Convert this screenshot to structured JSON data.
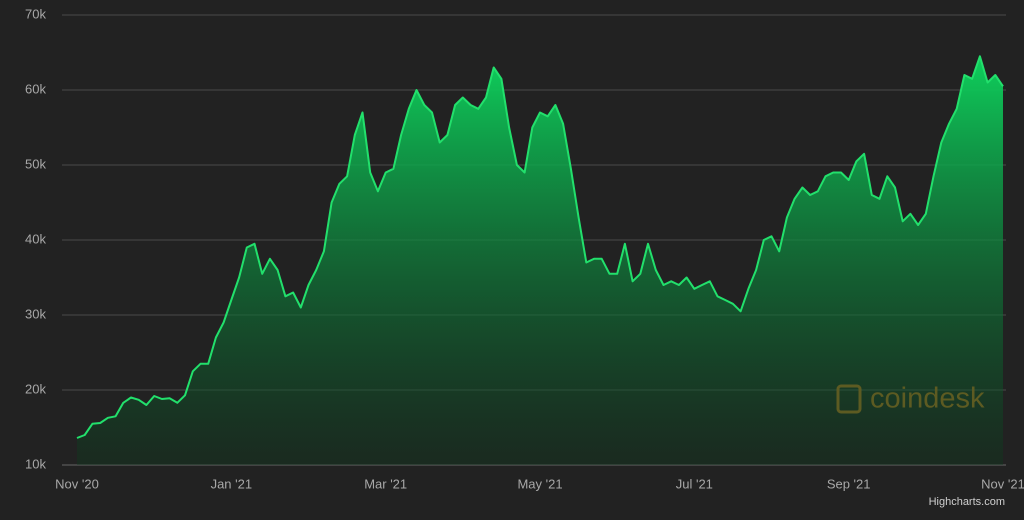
{
  "chart_data": {
    "type": "area",
    "categories": [
      "Nov '20",
      null,
      null,
      null,
      null,
      null,
      null,
      null,
      null,
      null,
      null,
      null,
      null,
      null,
      null,
      null,
      null,
      null,
      null,
      null,
      "Jan '21",
      null,
      null,
      null,
      null,
      null,
      null,
      null,
      null,
      null,
      null,
      null,
      null,
      null,
      null,
      null,
      null,
      null,
      null,
      null,
      "Mar '21",
      null,
      null,
      null,
      null,
      null,
      null,
      null,
      null,
      null,
      null,
      null,
      null,
      null,
      null,
      null,
      null,
      null,
      null,
      null,
      "May '21",
      null,
      null,
      null,
      null,
      null,
      null,
      null,
      null,
      null,
      null,
      null,
      null,
      null,
      null,
      null,
      null,
      null,
      null,
      null,
      "Jul '21",
      null,
      null,
      null,
      null,
      null,
      null,
      null,
      null,
      null,
      null,
      null,
      null,
      null,
      null,
      null,
      null,
      null,
      null,
      null,
      "Sep '21",
      null,
      null,
      null,
      null,
      null,
      null,
      null,
      null,
      null,
      null,
      null,
      null,
      null,
      null,
      null,
      null,
      null,
      null,
      null,
      "Nov '21"
    ],
    "series": [
      {
        "color": "#22e06c",
        "values": [
          13600,
          14000,
          15500,
          15600,
          16300,
          16500,
          18300,
          19000,
          18700,
          18000,
          19200,
          18800,
          18900,
          18300,
          19300,
          22500,
          23500,
          23500,
          27000,
          29000,
          32000,
          35000,
          39000,
          39500,
          35500,
          37500,
          36000,
          32500,
          33000,
          31000,
          34000,
          36000,
          38500,
          45000,
          47500,
          48500,
          54000,
          57000,
          49000,
          46500,
          49000,
          49500,
          54000,
          57500,
          60000,
          58000,
          57000,
          53000,
          54000,
          58000,
          59000,
          58000,
          57500,
          59000,
          63000,
          61500,
          55000,
          50000,
          49000,
          55000,
          57000,
          56500,
          58000,
          55500,
          49500,
          43000,
          37000,
          37500,
          37500,
          35500,
          35500,
          39500,
          34500,
          35500,
          39500,
          36000,
          34000,
          34500,
          34000,
          35000,
          33500,
          34000,
          34500,
          32500,
          32000,
          31500,
          30500,
          33500,
          36000,
          40000,
          40500,
          38500,
          43000,
          45500,
          47000,
          46000,
          46500,
          48500,
          49000,
          49000,
          48000,
          50500,
          51500,
          46000,
          45500,
          48500,
          47000,
          42500,
          43500,
          42000,
          43500,
          48500,
          53000,
          55500,
          57500,
          62000,
          61500,
          64500,
          61000,
          62000,
          60500
        ]
      }
    ],
    "ylim": [
      10000,
      70000
    ],
    "yticks": [
      {
        "value": 10000,
        "label": "10k"
      },
      {
        "value": 20000,
        "label": "20k"
      },
      {
        "value": 30000,
        "label": "30k"
      },
      {
        "value": 40000,
        "label": "40k"
      },
      {
        "value": 50000,
        "label": "50k"
      },
      {
        "value": 60000,
        "label": "60k"
      },
      {
        "value": 70000,
        "label": "70k"
      }
    ],
    "grid": true,
    "watermark": "coindesk",
    "credits": "Highcharts.com"
  }
}
